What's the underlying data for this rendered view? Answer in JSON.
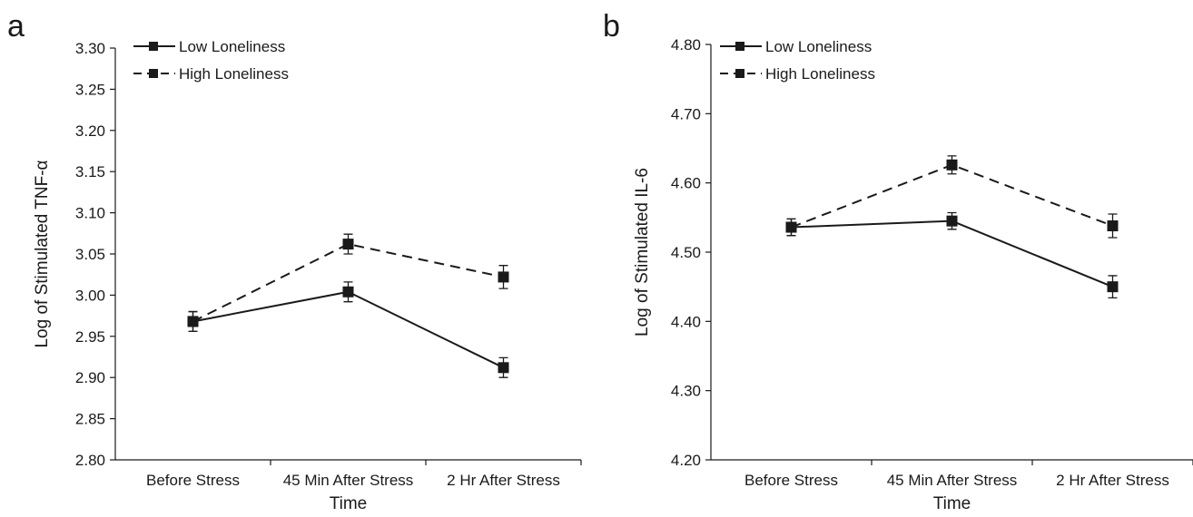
{
  "chart_data": [
    {
      "type": "line",
      "panel_label": "a",
      "categories": [
        "Before Stress",
        "45 Min After Stress",
        "2 Hr After Stress"
      ],
      "xlabel": "Time",
      "ylabel": "Log of Stimulated TNF-α",
      "ylim": [
        2.8,
        3.3
      ],
      "yticks": [
        "2.80",
        "2.85",
        "2.90",
        "2.95",
        "3.00",
        "3.05",
        "3.10",
        "3.15",
        "3.20",
        "3.25",
        "3.30"
      ],
      "legend_position": "top-left",
      "grid": false,
      "series": [
        {
          "name": "Low Loneliness",
          "line_style": "solid",
          "values": [
            2.968,
            3.004,
            2.912
          ],
          "error": [
            0.012,
            0.012,
            0.012
          ]
        },
        {
          "name": "High Loneliness",
          "line_style": "dashed",
          "values": [
            2.968,
            3.062,
            3.022
          ],
          "error": [
            0.012,
            0.012,
            0.014
          ]
        }
      ]
    },
    {
      "type": "line",
      "panel_label": "b",
      "categories": [
        "Before Stress",
        "45 Min After Stress",
        "2 Hr After Stress"
      ],
      "xlabel": "Time",
      "ylabel": "Log of Stimulated IL-6",
      "ylim": [
        4.2,
        4.8
      ],
      "yticks": [
        "4.20",
        "4.30",
        "4.40",
        "4.50",
        "4.60",
        "4.70",
        "4.80"
      ],
      "legend_position": "top-left",
      "grid": false,
      "series": [
        {
          "name": "Low Loneliness",
          "line_style": "solid",
          "values": [
            4.536,
            4.545,
            4.45
          ],
          "error": [
            0.012,
            0.012,
            0.016
          ]
        },
        {
          "name": "High Loneliness",
          "line_style": "dashed",
          "values": [
            4.536,
            4.626,
            4.538
          ],
          "error": [
            0.012,
            0.013,
            0.017
          ]
        }
      ]
    }
  ]
}
